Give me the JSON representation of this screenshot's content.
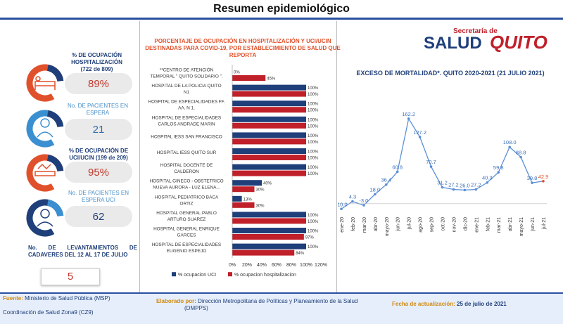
{
  "header": {
    "title": "Resumen epidemiológico"
  },
  "kpis": {
    "hosp_label": "% DE OCUPACIÓN HOSPITALIZACIÓN",
    "hosp_sub": "(722 de 809)",
    "hosp_value": "89%",
    "espera_label": "No. DE PACIENTES EN ESPERA",
    "espera_value": "21",
    "uci_label": "% DE OCUPACIÓN DE UCI/UCIN (199 de 209)",
    "uci_value": "95%",
    "espera_uci_label": "No. DE PACIENTES EN ESPERA UCI",
    "espera_uci_value": "62",
    "cadaveres_label": "No. DE LEVANTAMIENTOS DE CADAVERES DEL 12 AL 17 DE JULIO",
    "cadaveres_value": "5"
  },
  "logo": {
    "line1": "Secretaría de",
    "line2": "SALUD",
    "line3": "QUITO"
  },
  "colors": {
    "uci": "#1f3f7a",
    "hosp": "#c0202a",
    "line": "#5b8fd6",
    "accent": "#e0512b"
  },
  "chart_data": [
    {
      "type": "bar",
      "title": "PORCENTAJE DE OCUPACIÓN EN HOSPITALIZACIÓN Y UCI/UCIN DESTINADAS PARA COVID-19, POR ESTABLECIMIENTO DE SALUD QUE REPORTA",
      "orientation": "horizontal",
      "categories": [
        [
          "**CENTRO DE ATENCIÓN",
          "TEMPORAL \" QUITO SOLIDARIO \"."
        ],
        [
          "HOSPITAL DE LA POLICIA QUITO",
          "N1"
        ],
        [
          "HOSPITAL DE ESPECIALIDADES FF.",
          "AA. N 1."
        ],
        [
          "HOSPITAL DE ESPECIALIDADES",
          "CARLOS ANDRADE MARIN"
        ],
        [
          "HOSPITAL IESS SAN FRANCISCO"
        ],
        [
          "HOSPITAL IESS QUITO SUR"
        ],
        [
          "HOSPITAL DOCENTE DE",
          "CALDERON"
        ],
        [
          "HOSPITAL GINECO - OBSTETRICO",
          "NUEVA AURORA - LUZ ELENA..."
        ],
        [
          "HOSPITAL PEDIATRICO BACA",
          "ORTIZ"
        ],
        [
          "HOSPITAL GENERAL PABLO",
          "ARTURO SUAREZ"
        ],
        [
          "HOSPITAL GENERAL ENRIQUE",
          "GARCES"
        ],
        [
          "HOSPITAL DE ESPECIALIDADES",
          "EUGENIO ESPEJO"
        ]
      ],
      "series": [
        {
          "name": "% ocupacion UCI",
          "values": [
            0,
            100,
            100,
            100,
            100,
            100,
            100,
            40,
            13,
            100,
            100,
            100
          ],
          "labels": [
            "0%",
            "100%",
            "100%",
            "100%",
            "100%",
            "100%",
            "100%",
            "40%",
            "13%",
            "100%",
            "100%",
            "100%"
          ]
        },
        {
          "name": "% ocupacion hospitalizacion",
          "values": [
            45,
            100,
            100,
            100,
            100,
            100,
            100,
            30,
            30,
            100,
            97,
            84
          ],
          "labels": [
            "45%",
            "100%",
            "100%",
            "100%",
            "100%",
            "100%",
            "100%",
            "30%",
            "30%",
            "100%",
            "97%",
            "84%"
          ]
        }
      ],
      "xticks": [
        "0%",
        "20%",
        "40%",
        "60%",
        "80%",
        "100%",
        "120%"
      ],
      "xlim": [
        0,
        120
      ],
      "legend": "bottom"
    },
    {
      "type": "line",
      "title": "EXCESO DE MORTALIDAD*. QUITO 2020-2021 (21 JULIO 2021)",
      "categories": [
        "ene-20",
        "feb-20",
        "mar-20",
        "abr-20",
        "may-20",
        "jun-20",
        "jul-20",
        "ago-20",
        "sep-20",
        "oct-20",
        "nov-20",
        "dic-20",
        "ene-21",
        "feb-21",
        "mar-21",
        "abr-21",
        "may-21",
        "jun-21",
        "jul-21"
      ],
      "x_tick_labels": [
        "ene-20",
        "feb-20",
        "mar-20",
        "abr-20",
        "mayo-20",
        "jun-20",
        "jul-20",
        "ago-20",
        "sep-20",
        "oct-20",
        "nov-20",
        "dic-20",
        "ene-21",
        "feb-21",
        "mar-21",
        "abr-21",
        "mayo-21",
        "jun-21",
        "jul-21"
      ],
      "values": [
        -10.0,
        4.3,
        -3.0,
        18.0,
        36.4,
        60.8,
        162.2,
        127.2,
        70.7,
        31.2,
        27.2,
        26.0,
        27.2,
        40.3,
        59.8,
        108.0,
        88.8,
        39.8,
        42.9
      ],
      "labels": [
        "-10.0",
        "4.3",
        "-3.0",
        "18.0",
        "36.4",
        "60.8",
        "162.2",
        "127.2",
        "70.7",
        "31.2",
        "27.2",
        "26.0",
        "27.2",
        "40.3",
        "59.8",
        "108.0",
        "88.8",
        "39.8",
        "42.9"
      ],
      "ylim": [
        -15,
        170
      ],
      "grid": false
    }
  ],
  "footer": {
    "fuente_label": "Fuente:",
    "fuente_text": "Ministerio de Salud Pública (MSP)",
    "coord_text": "Coordinación de Salud Zona9 (CZ9)",
    "elaborado_label": "Elaborado por:",
    "elaborado_text": "Dirección Metropolitana de Políticas y Planeamiento de la Salud",
    "elaborado_text2": "(DMPPS)",
    "fecha_label": "Fecha de actualización:",
    "fecha_text": "25 de julio de 2021"
  }
}
